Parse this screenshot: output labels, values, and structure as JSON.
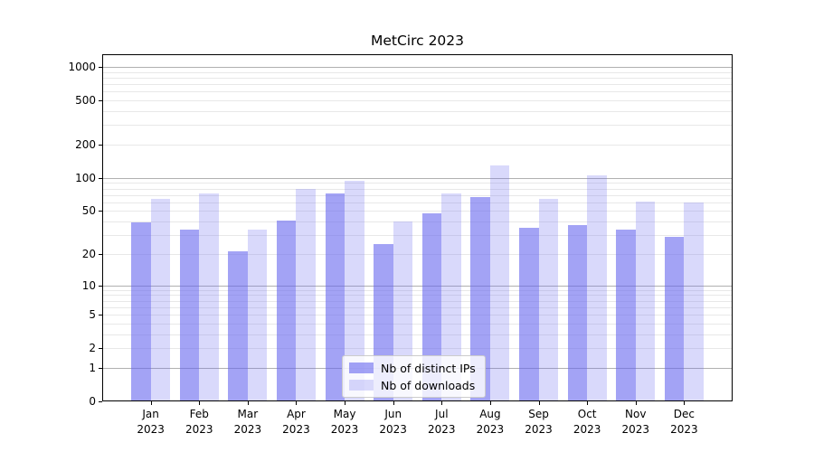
{
  "chart_data": {
    "type": "bar",
    "title": "MetCirc 2023",
    "categories": [
      "Jan",
      "Feb",
      "Mar",
      "Apr",
      "May",
      "Jun",
      "Jul",
      "Aug",
      "Sep",
      "Oct",
      "Nov",
      "Dec"
    ],
    "x_tick_year": "2023",
    "series": [
      {
        "name": "Nb of distinct IPs",
        "color": "rgba(102,102,238,0.60)",
        "color_on_white": "#a8a8f2",
        "values": [
          39,
          34,
          21,
          41,
          72,
          25,
          48,
          67,
          35,
          37,
          34,
          29
        ]
      },
      {
        "name": "Nb of downloads",
        "color": "rgba(102,102,238,0.25)",
        "color_on_white": "#d9d9f8",
        "values": [
          65,
          73,
          34,
          80,
          94,
          40,
          72,
          130,
          64,
          106,
          61,
          60
        ]
      }
    ],
    "yscale": "log1p",
    "ylim": [
      0,
      1300
    ],
    "y_tick_values": [
      0,
      1,
      2,
      5,
      10,
      20,
      50,
      100,
      200,
      500,
      1000
    ],
    "y_tick_labels": [
      "0",
      "1",
      "2",
      "5",
      "10",
      "20",
      "50",
      "100",
      "200",
      "500",
      "1000"
    ],
    "y_major_gridlines": [
      1,
      10,
      100,
      1000
    ],
    "y_minor_gridlines": [
      2,
      3,
      4,
      5,
      6,
      7,
      8,
      9,
      20,
      30,
      40,
      50,
      60,
      70,
      80,
      90,
      200,
      300,
      400,
      500,
      600,
      700,
      800,
      900
    ],
    "grid": true,
    "legend_position": "lower center",
    "xlabel": "",
    "ylabel": "",
    "colors": {
      "major_grid": "#b0b0b0",
      "minor_grid": "#e8e8e8",
      "axis": "#000000",
      "text": "#000000",
      "legend_border": "#cccccc",
      "legend_bg": "rgba(255,255,255,0.8)"
    }
  }
}
